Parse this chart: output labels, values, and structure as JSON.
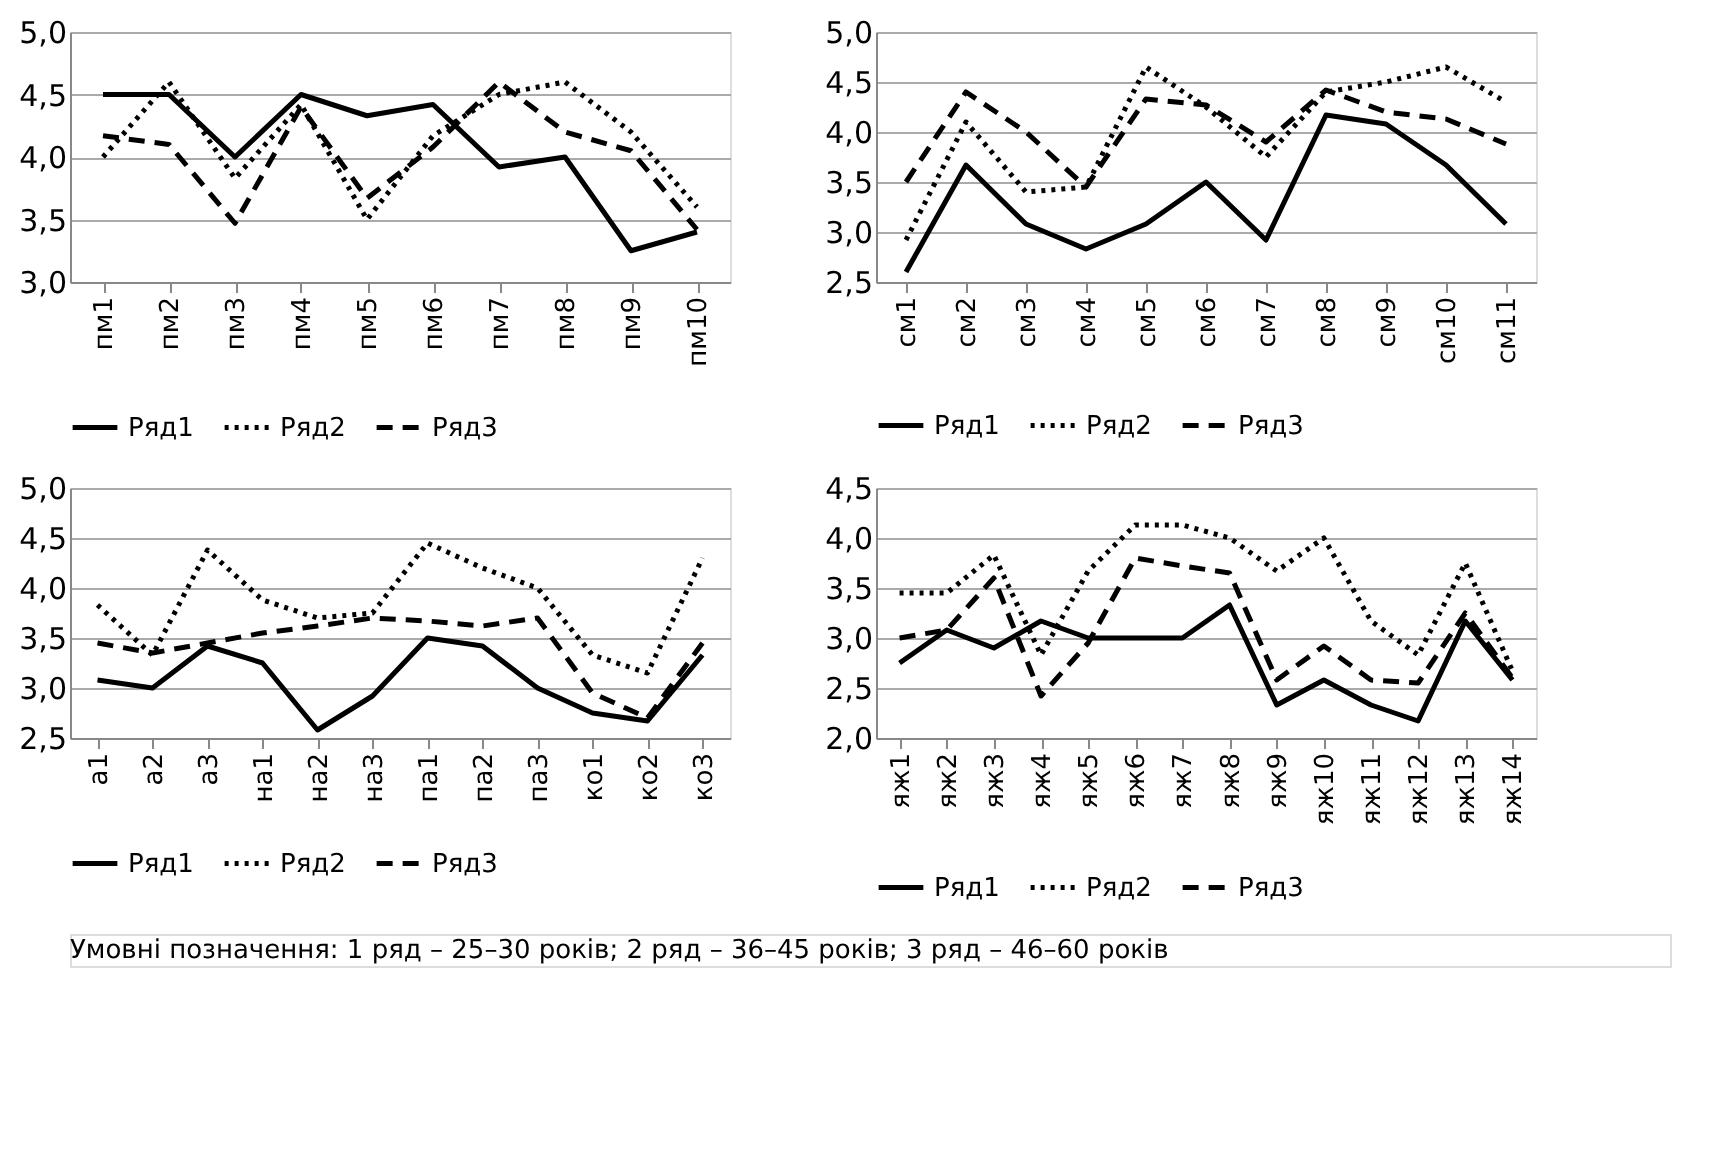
{
  "chart_data": [
    {
      "type": "line",
      "categories": [
        "пм1",
        "пм2",
        "пм3",
        "пм4",
        "пм5",
        "пм6",
        "пм7",
        "пм8",
        "пм9",
        "пм10"
      ],
      "ylim": [
        3.0,
        5.0
      ],
      "yticks": [
        {
          "value": 3.0,
          "label": "3,0"
        },
        {
          "value": 3.5,
          "label": "3,5"
        },
        {
          "value": 4.0,
          "label": "4,0"
        },
        {
          "value": 4.5,
          "label": "4,5"
        },
        {
          "value": 5.0,
          "label": "5,0"
        }
      ],
      "grid": "y",
      "legend": "bottom",
      "marker": "none",
      "series": [
        {
          "name": "Ряд1",
          "color": "#000000",
          "line_style": "solid",
          "values": [
            4.5,
            4.5,
            4.0,
            4.5,
            4.33,
            4.42,
            3.92,
            4.0,
            3.25,
            3.4
          ]
        },
        {
          "name": "Ряд2",
          "color": "#000000",
          "line_style": "dotted",
          "values": [
            4.0,
            4.6,
            3.83,
            4.42,
            3.5,
            4.17,
            4.5,
            4.6,
            4.2,
            3.6
          ]
        },
        {
          "name": "Ряд3",
          "color": "#000000",
          "line_style": "dashed",
          "values": [
            4.17,
            4.1,
            3.47,
            4.4,
            3.67,
            4.08,
            4.6,
            4.2,
            4.05,
            3.42
          ]
        }
      ]
    },
    {
      "type": "line",
      "categories": [
        "см1",
        "см2",
        "см3",
        "см4",
        "см5",
        "см6",
        "см7",
        "см8",
        "см9",
        "см10",
        "см11"
      ],
      "ylim": [
        2.5,
        5.0
      ],
      "yticks": [
        {
          "value": 2.5,
          "label": "2,5"
        },
        {
          "value": 3.0,
          "label": "3,0"
        },
        {
          "value": 3.5,
          "label": "3,5"
        },
        {
          "value": 4.0,
          "label": "4,0"
        },
        {
          "value": 4.5,
          "label": "4,5"
        },
        {
          "value": 5.0,
          "label": "5,0"
        }
      ],
      "grid": "y",
      "legend": "bottom",
      "marker": "none",
      "series": [
        {
          "name": "Ряд1",
          "color": "#000000",
          "line_style": "solid",
          "values": [
            2.6,
            3.67,
            3.08,
            2.83,
            3.08,
            3.5,
            2.92,
            4.17,
            4.08,
            3.67,
            3.08
          ]
        },
        {
          "name": "Ряд2",
          "color": "#000000",
          "line_style": "dotted",
          "values": [
            2.92,
            4.1,
            3.4,
            3.45,
            4.65,
            4.25,
            3.75,
            4.4,
            4.5,
            4.65,
            4.3
          ]
        },
        {
          "name": "Ряд3",
          "color": "#000000",
          "line_style": "dashed",
          "values": [
            3.5,
            4.4,
            4.0,
            3.45,
            4.33,
            4.27,
            3.9,
            4.42,
            4.2,
            4.13,
            3.88
          ]
        }
      ]
    },
    {
      "type": "line",
      "categories": [
        "а1",
        "а2",
        "а3",
        "на1",
        "на2",
        "на3",
        "па1",
        "па2",
        "па3",
        "ко1",
        "ко2",
        "ко3"
      ],
      "ylim": [
        2.5,
        5.0
      ],
      "yticks": [
        {
          "value": 2.5,
          "label": "2,5"
        },
        {
          "value": 3.0,
          "label": "3,0"
        },
        {
          "value": 3.5,
          "label": "3,5"
        },
        {
          "value": 4.0,
          "label": "4,0"
        },
        {
          "value": 4.5,
          "label": "4,5"
        },
        {
          "value": 5.0,
          "label": "5,0"
        }
      ],
      "grid": "y",
      "legend": "bottom",
      "marker": "none",
      "series": [
        {
          "name": "Ряд1",
          "color": "#000000",
          "line_style": "solid",
          "values": [
            3.08,
            3.0,
            3.42,
            3.25,
            2.58,
            2.92,
            3.5,
            3.42,
            3.0,
            2.75,
            2.67,
            3.33
          ]
        },
        {
          "name": "Ряд2",
          "color": "#000000",
          "line_style": "dotted",
          "values": [
            3.83,
            3.33,
            4.38,
            3.88,
            3.7,
            3.75,
            4.45,
            4.2,
            4.0,
            3.33,
            3.15,
            4.3
          ]
        },
        {
          "name": "Ряд3",
          "color": "#000000",
          "line_style": "dashed",
          "values": [
            3.45,
            3.35,
            3.45,
            3.55,
            3.62,
            3.7,
            3.67,
            3.62,
            3.7,
            2.95,
            2.7,
            3.45
          ]
        }
      ]
    },
    {
      "type": "line",
      "categories": [
        "яж1",
        "яж2",
        "яж3",
        "яж4",
        "яж5",
        "яж6",
        "яж7",
        "яж8",
        "яж9",
        "яж10",
        "яж11",
        "яж12",
        "яж13",
        "яж14"
      ],
      "ylim": [
        2.0,
        4.5
      ],
      "yticks": [
        {
          "value": 2.0,
          "label": "2,0"
        },
        {
          "value": 2.5,
          "label": "2,5"
        },
        {
          "value": 3.0,
          "label": "3,0"
        },
        {
          "value": 3.5,
          "label": "3,5"
        },
        {
          "value": 4.0,
          "label": "4,0"
        },
        {
          "value": 4.5,
          "label": "4,5"
        }
      ],
      "grid": "y",
      "legend": "bottom",
      "marker": "none",
      "annotations": [
        "Умовні позначення: 1 ряд – 25–30 років; 2 ряд – 36–45 років; 3 ряд – 46–60 років"
      ],
      "series": [
        {
          "name": "Ряд1",
          "color": "#000000",
          "line_style": "solid",
          "values": [
            2.75,
            3.08,
            2.9,
            3.17,
            3.0,
            3.0,
            3.0,
            3.33,
            2.33,
            2.58,
            2.33,
            2.17,
            3.17,
            2.58
          ]
        },
        {
          "name": "Ряд2",
          "color": "#000000",
          "line_style": "dotted",
          "values": [
            3.45,
            3.45,
            3.83,
            2.83,
            3.67,
            4.13,
            4.13,
            4.0,
            3.67,
            4.0,
            3.17,
            2.83,
            3.75,
            2.67
          ]
        },
        {
          "name": "Ряд3",
          "color": "#000000",
          "line_style": "dashed",
          "values": [
            3.0,
            3.08,
            3.6,
            2.42,
            2.95,
            3.8,
            3.72,
            3.65,
            2.58,
            2.92,
            2.58,
            2.55,
            3.25,
            2.6
          ]
        }
      ]
    }
  ]
}
